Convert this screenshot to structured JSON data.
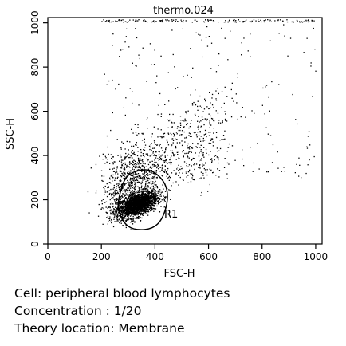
{
  "chart_data": {
    "type": "scatter",
    "title": "thermo.024",
    "xlabel": "FSC-H",
    "ylabel": "SSC-H",
    "xlim": [
      0,
      1024
    ],
    "ylim": [
      0,
      1024
    ],
    "x_ticks": [
      0,
      200,
      400,
      600,
      800,
      1000
    ],
    "y_ticks": [
      0,
      200,
      400,
      600,
      800,
      1000
    ],
    "grid": false,
    "point_color": "#000000",
    "populations": [
      {
        "kind": "core",
        "center": [
          330,
          180
        ],
        "spread": [
          38,
          30
        ],
        "correlation": 0.5,
        "count": 2400
      },
      {
        "kind": "shoulder",
        "center": [
          310,
          260
        ],
        "spread": [
          55,
          60
        ],
        "correlation": 0.4,
        "count": 500
      },
      {
        "kind": "granulocyte-tail",
        "x_range": [
          260,
          640
        ],
        "y_range": [
          300,
          700
        ],
        "count": 700
      },
      {
        "kind": "sparse-scatter",
        "x_range": [
          200,
          1000
        ],
        "y_range": [
          300,
          1000
        ],
        "count": 220
      }
    ],
    "gate": {
      "label": "R1",
      "vertices": [
        [
          270,
          230
        ],
        [
          300,
          310
        ],
        [
          370,
          335
        ],
        [
          420,
          300
        ],
        [
          445,
          240
        ],
        [
          440,
          160
        ],
        [
          410,
          90
        ],
        [
          360,
          65
        ],
        [
          300,
          80
        ],
        [
          265,
          150
        ]
      ]
    }
  },
  "caption": {
    "cell": "Cell: peripheral blood lymphocytes",
    "concentration": "Concentration : 1/20",
    "location": "Theory location: Membrane"
  }
}
